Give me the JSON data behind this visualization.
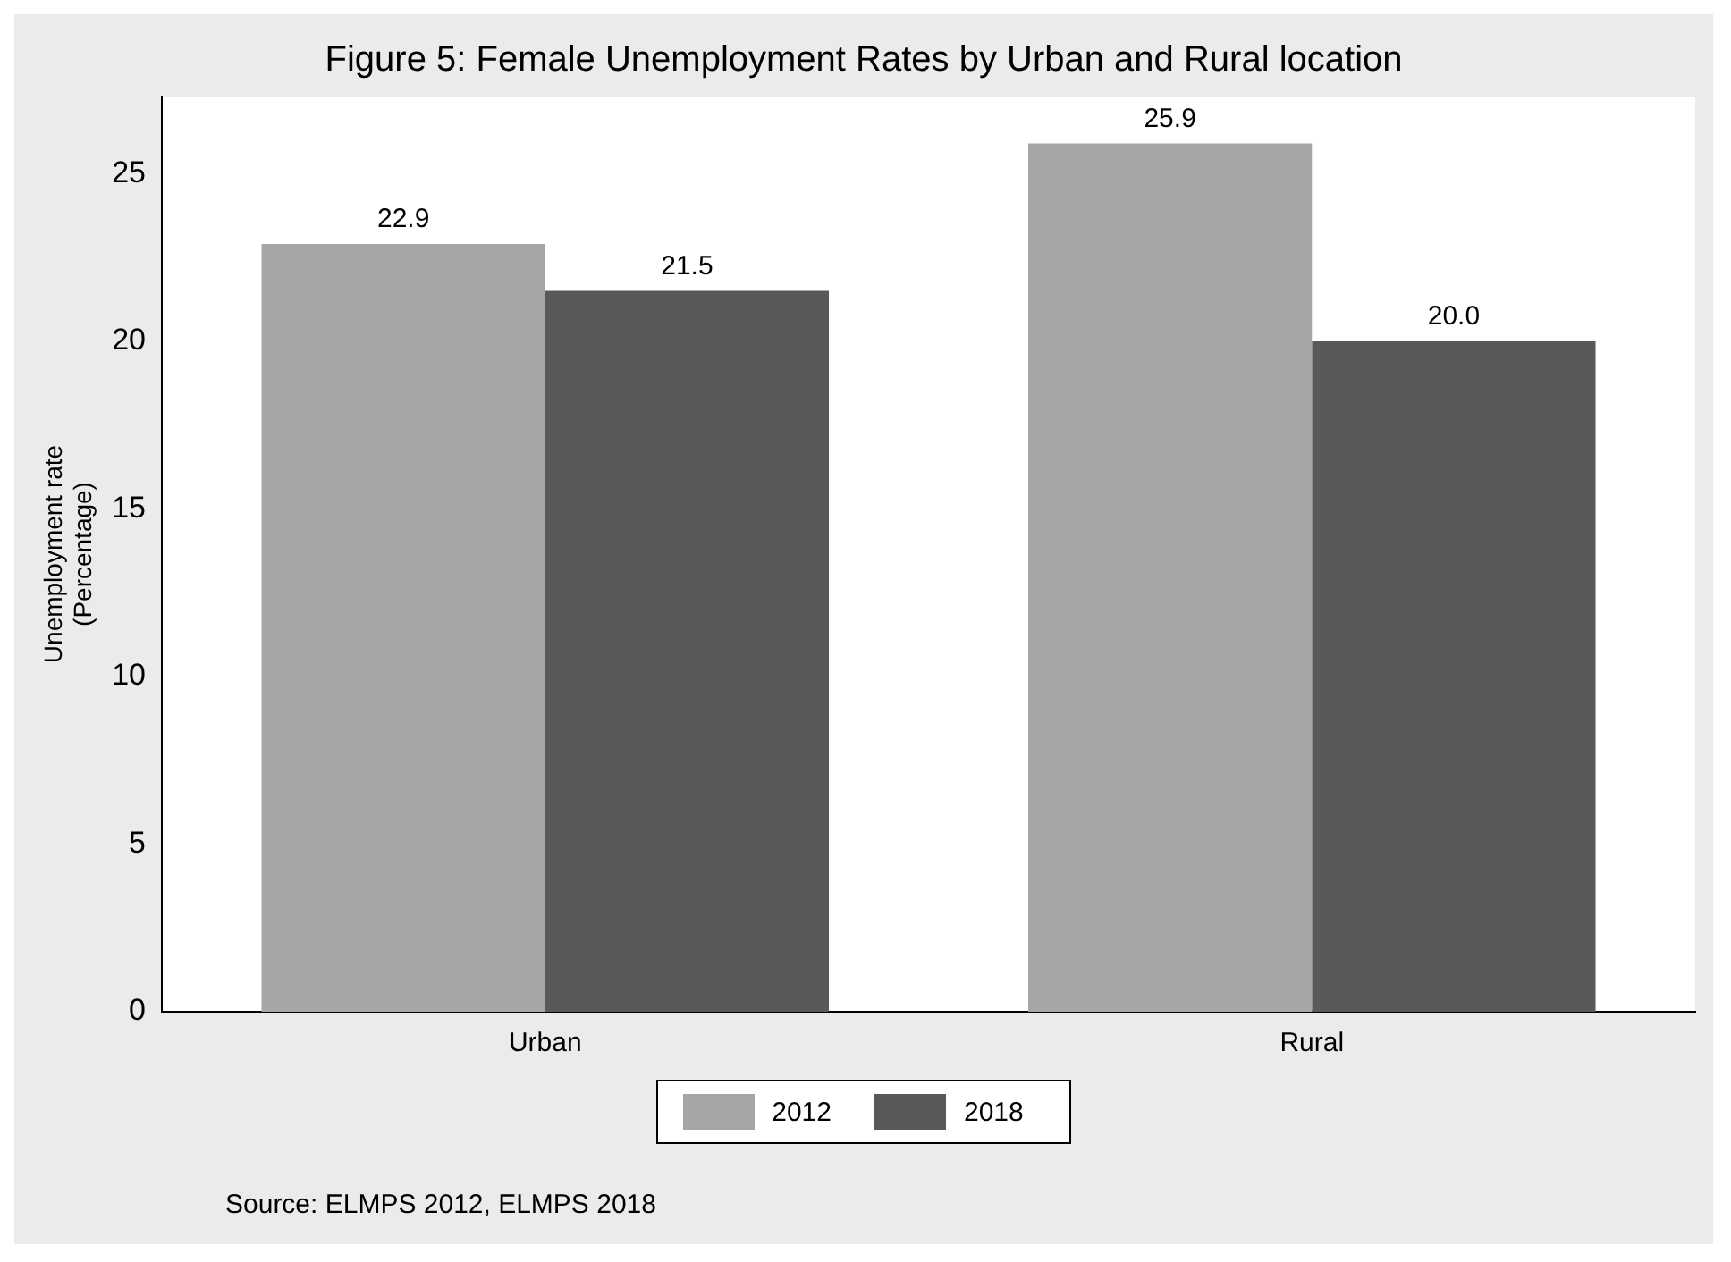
{
  "chart_data": {
    "type": "bar",
    "title": "Figure 5: Female Unemployment Rates by Urban and Rural location",
    "ylabel": "Unemployment rate\n(Percentage)",
    "categories": [
      "Urban",
      "Rural"
    ],
    "series": [
      {
        "name": "2012",
        "color": "#a6a6a6",
        "values": [
          22.9,
          25.9
        ]
      },
      {
        "name": "2018",
        "color": "#595959",
        "values": [
          21.5,
          20.0
        ]
      }
    ],
    "value_labels": [
      [
        "22.9",
        "25.9"
      ],
      [
        "21.5",
        "20.0"
      ]
    ],
    "ylim": [
      0,
      27.3
    ],
    "yticks": [
      0,
      5,
      10,
      15,
      20,
      25
    ],
    "grid": false,
    "legend": "bottom",
    "annotations": [
      "Source: ELMPS 2012, ELMPS 2018"
    ]
  }
}
